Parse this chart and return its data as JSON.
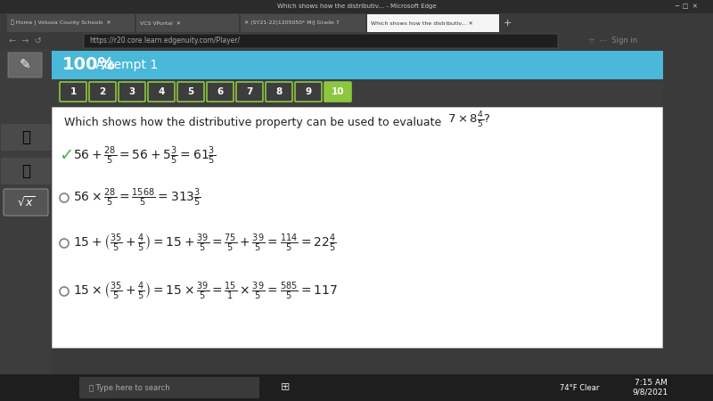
{
  "bg_outer": "#3a3a3a",
  "bg_header": "#4ab8d8",
  "bg_white": "#ffffff",
  "header_text": "100%",
  "header_sub": " Attempt 1",
  "nav_buttons": [
    "1",
    "2",
    "3",
    "4",
    "5",
    "6",
    "7",
    "8",
    "9",
    "10"
  ],
  "nav_active": 9,
  "nav_border_color": "#8dc63f",
  "nav_active_bg": "#8dc63f",
  "nav_text_color": "#ffffff",
  "check_color": "#4caf50",
  "radio_color": "#888888",
  "font_color": "#222222",
  "browser_bg": "#2b2b2b",
  "tab_bg": "#4a4a4a",
  "tab_active_bg": "#f0f0f0",
  "taskbar_bg": "#1e1e1e"
}
